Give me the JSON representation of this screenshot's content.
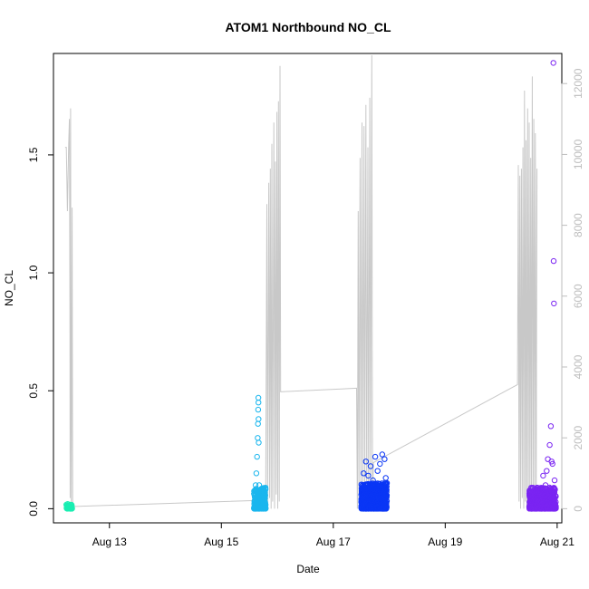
{
  "chart_data": {
    "type": "scatter",
    "title": "ATOM1 Northbound NO_CL",
    "xlabel": "Date",
    "ylabel": "NO_CL",
    "x_ticks": [
      "Aug 13",
      "Aug 15",
      "Aug 17",
      "Aug 19",
      "Aug 21"
    ],
    "y_ticks": [
      "0.0",
      "0.5",
      "1.0",
      "1.5"
    ],
    "y2_ticks": [
      "0",
      "2000",
      "4000",
      "6000",
      "8000",
      "10000",
      "12000"
    ],
    "xlim": [
      "2016-08-12T00:00",
      "2016-08-21T02:00"
    ],
    "ylim": [
      -0.06,
      1.93
    ],
    "y2lim": [
      -400,
      12850
    ],
    "grid": false,
    "colors": {
      "sessions": [
        "#1aeeb2",
        "#1ab6ee",
        "#0a36f5",
        "#7a24f2"
      ],
      "secondary_line": "#c8c8c8",
      "right_axis": "#bdbdbd"
    },
    "series": [
      {
        "session_start": "2016-08-12T05:30",
        "session_end": "2016-08-12T08:00",
        "points": [
          [
            0.3,
            0.01
          ],
          [
            0.6,
            0.02
          ],
          [
            0.9,
            0.015
          ],
          [
            1.2,
            0.005
          ],
          [
            1.5,
            0.01
          ],
          [
            1.8,
            0.0
          ],
          [
            2.1,
            0.008
          ],
          [
            2.4,
            0.0
          ]
        ],
        "dense": {
          "n": 45,
          "ymin": 0.0,
          "ymax": 0.02
        }
      },
      {
        "session_start": "2016-08-15T14:00",
        "session_end": "2016-08-15T19:00",
        "points": [
          [
            0.1,
            0.02
          ],
          [
            0.2,
            0.03
          ],
          [
            0.4,
            0.06
          ],
          [
            0.7,
            0.1
          ],
          [
            1.0,
            0.15
          ],
          [
            1.3,
            0.22
          ],
          [
            1.6,
            0.3
          ],
          [
            1.7,
            0.36
          ],
          [
            1.8,
            0.42
          ],
          [
            1.85,
            0.47
          ],
          [
            1.9,
            0.45
          ],
          [
            1.95,
            0.38
          ],
          [
            2.0,
            0.28
          ],
          [
            2.2,
            0.1
          ],
          [
            2.6,
            0.06
          ],
          [
            3.0,
            0.04
          ],
          [
            3.5,
            0.08
          ],
          [
            4.0,
            0.03
          ],
          [
            4.5,
            0.07
          ],
          [
            4.9,
            0.02
          ]
        ],
        "dense": {
          "n": 260,
          "ymin": 0.0,
          "ymax": 0.09
        }
      },
      {
        "session_start": "2016-08-17T12:00",
        "session_end": "2016-08-17T23:00",
        "points": [
          [
            0.5,
            0.1
          ],
          [
            1.0,
            0.15
          ],
          [
            2.0,
            0.2
          ],
          [
            3.0,
            0.14
          ],
          [
            4.0,
            0.18
          ],
          [
            5.0,
            0.12
          ],
          [
            6.0,
            0.22
          ],
          [
            7.0,
            0.16
          ],
          [
            8.0,
            0.19
          ],
          [
            9.0,
            0.23
          ],
          [
            10.0,
            0.21
          ],
          [
            10.5,
            0.13
          ]
        ],
        "dense": {
          "n": 750,
          "ymin": 0.0,
          "ymax": 0.11
        }
      },
      {
        "session_start": "2016-08-20T12:00",
        "session_end": "2016-08-20T23:30",
        "points": [
          [
            0.5,
            0.06
          ],
          [
            1.5,
            0.05
          ],
          [
            3.0,
            0.07
          ],
          [
            5.0,
            0.08
          ],
          [
            6.0,
            0.14
          ],
          [
            7.0,
            0.1
          ],
          [
            7.5,
            0.16
          ],
          [
            8.0,
            0.21
          ],
          [
            8.8,
            0.27
          ],
          [
            9.3,
            0.35
          ],
          [
            9.6,
            0.2
          ],
          [
            10.0,
            0.19
          ],
          [
            10.4,
            1.89
          ],
          [
            10.5,
            1.05
          ],
          [
            10.6,
            0.87
          ],
          [
            10.9,
            0.12
          ]
        ],
        "dense": {
          "n": 650,
          "ymin": 0.0,
          "ymax": 0.09
        }
      }
    ],
    "secondary_line": {
      "axis": "right",
      "points": [
        [
          "2016-08-12T05:00",
          10200
        ],
        [
          "2016-08-12T05:30",
          10200
        ],
        [
          "2016-08-12T06:00",
          8400
        ],
        [
          "2016-08-12T06:30",
          10200
        ],
        [
          "2016-08-12T06:50",
          11000
        ],
        [
          "2016-08-12T07:05",
          5400
        ],
        [
          "2016-08-12T07:10",
          300
        ],
        [
          "2016-08-12T07:20",
          11300
        ],
        [
          "2016-08-12T07:30",
          4700
        ],
        [
          "2016-08-12T07:40",
          0
        ],
        [
          "2016-08-12T08:00",
          8500
        ],
        [
          "2016-08-12T08:15",
          60
        ],
        [
          "2016-08-15T19:00",
          240
        ],
        [
          "2016-08-15T19:30",
          8600
        ],
        [
          "2016-08-15T19:50",
          0
        ],
        [
          "2016-08-15T20:20",
          9200
        ],
        [
          "2016-08-15T20:40",
          300
        ],
        [
          "2016-08-15T21:00",
          9600
        ],
        [
          "2016-08-15T21:20",
          0
        ],
        [
          "2016-08-15T21:40",
          10300
        ],
        [
          "2016-08-15T22:00",
          200
        ],
        [
          "2016-08-15T22:30",
          10900
        ],
        [
          "2016-08-15T22:50",
          0
        ],
        [
          "2016-08-15T23:10",
          9800
        ],
        [
          "2016-08-15T23:30",
          400
        ],
        [
          "2016-08-15T23:50",
          11200
        ],
        [
          "2016-08-16T00:10",
          0
        ],
        [
          "2016-08-16T00:30",
          11500
        ],
        [
          "2016-08-16T00:50",
          200
        ],
        [
          "2016-08-16T01:10",
          12500
        ],
        [
          "2016-08-16T01:25",
          3300
        ],
        [
          "2016-08-17T10:00",
          3400
        ],
        [
          "2016-08-17T10:20",
          0
        ],
        [
          "2016-08-17T10:40",
          8400
        ],
        [
          "2016-08-17T11:00",
          200
        ],
        [
          "2016-08-17T11:30",
          9900
        ],
        [
          "2016-08-17T11:50",
          0
        ],
        [
          "2016-08-17T12:20",
          10900
        ],
        [
          "2016-08-17T12:40",
          300
        ],
        [
          "2016-08-17T13:10",
          10800
        ],
        [
          "2016-08-17T13:30",
          0
        ],
        [
          "2016-08-17T14:00",
          11400
        ],
        [
          "2016-08-17T14:20",
          200
        ],
        [
          "2016-08-17T14:50",
          10200
        ],
        [
          "2016-08-17T15:10",
          0
        ],
        [
          "2016-08-17T15:40",
          11600
        ],
        [
          "2016-08-17T16:00",
          300
        ],
        [
          "2016-08-17T16:30",
          12800
        ],
        [
          "2016-08-17T16:50",
          0
        ],
        [
          "2016-08-17T17:10",
          1300
        ],
        [
          "2016-08-20T07:00",
          3500
        ],
        [
          "2016-08-20T07:20",
          9700
        ],
        [
          "2016-08-20T07:40",
          200
        ],
        [
          "2016-08-20T08:00",
          9400
        ],
        [
          "2016-08-20T08:20",
          0
        ],
        [
          "2016-08-20T08:40",
          9600
        ],
        [
          "2016-08-20T09:00",
          300
        ],
        [
          "2016-08-20T09:20",
          10200
        ],
        [
          "2016-08-20T09:40",
          0
        ],
        [
          "2016-08-20T10:00",
          11800
        ],
        [
          "2016-08-20T10:20",
          200
        ],
        [
          "2016-08-20T10:40",
          10400
        ],
        [
          "2016-08-20T11:00",
          0
        ],
        [
          "2016-08-20T11:20",
          11300
        ],
        [
          "2016-08-20T11:40",
          300
        ],
        [
          "2016-08-20T12:00",
          10900
        ],
        [
          "2016-08-20T12:20",
          0
        ],
        [
          "2016-08-20T12:40",
          9900
        ],
        [
          "2016-08-20T13:00",
          200
        ],
        [
          "2016-08-20T13:20",
          12200
        ],
        [
          "2016-08-20T13:40",
          0
        ],
        [
          "2016-08-20T14:00",
          11000
        ],
        [
          "2016-08-20T14:20",
          300
        ],
        [
          "2016-08-20T14:40",
          10600
        ],
        [
          "2016-08-20T15:00",
          0
        ],
        [
          "2016-08-20T15:20",
          9600
        ]
      ]
    }
  }
}
